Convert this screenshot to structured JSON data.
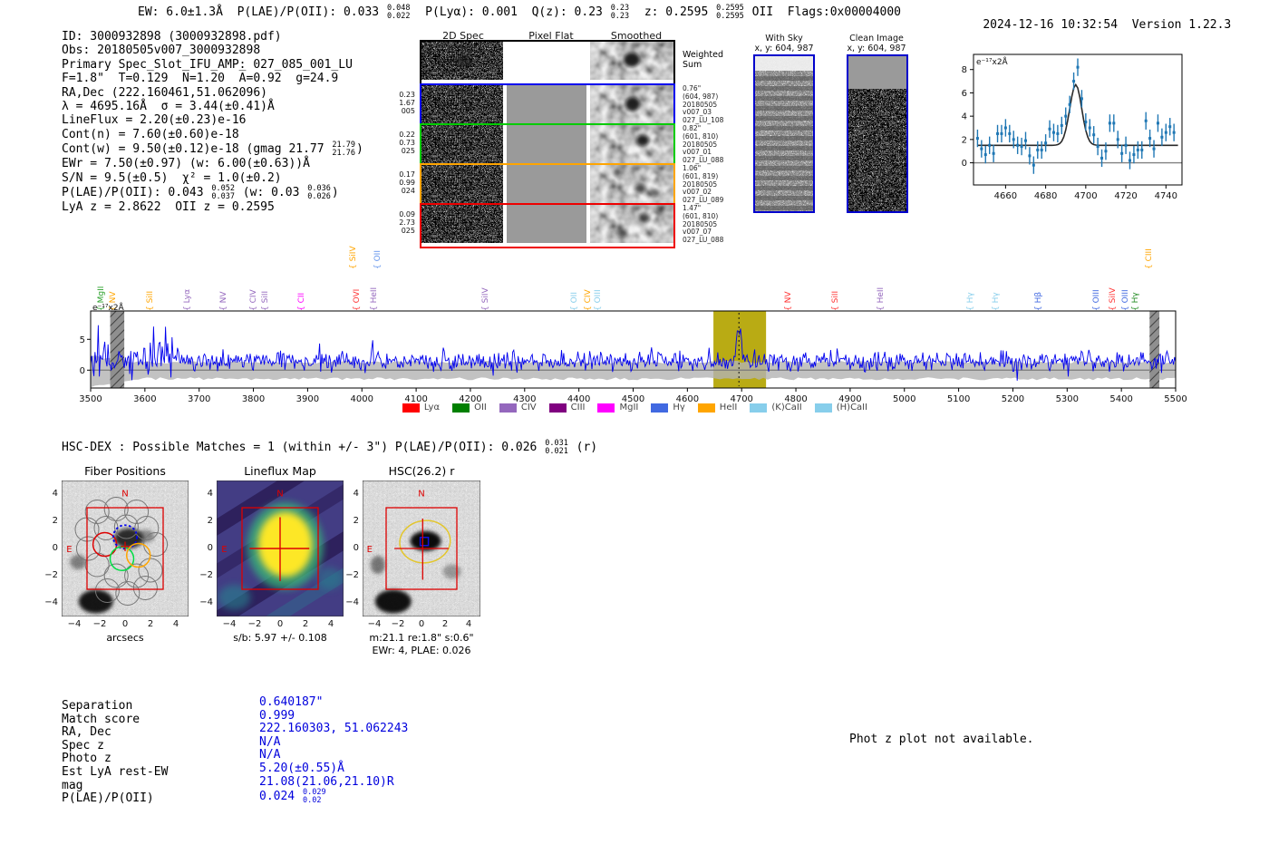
{
  "report": {
    "header": {
      "segments": [
        {
          "t": "EW: 6.0±1.3Å  P(LAE)/P(OII): 0.033 "
        },
        {
          "v": "",
          "sup": "0.048",
          "sub": "0.022"
        },
        {
          "t": "  P(Lyα): 0.001  Q(z): 0.23 "
        },
        {
          "v": "",
          "sup": "0.23",
          "sub": "0.23"
        },
        {
          "t": "  z: 0.2595 "
        },
        {
          "v": "",
          "sup": "0.2595",
          "sub": "0.2595"
        },
        {
          "t": " OII  Flags:0x00004000"
        }
      ],
      "timestamp": "2024-12-16 10:32:54",
      "version": "Version 1.22.3"
    },
    "info_lines": [
      [
        {
          "t": "ID: 3000932898 (3000932898.pdf)"
        }
      ],
      [
        {
          "t": "Obs: 20180505v007_3000932898"
        }
      ],
      [
        {
          "t": "Primary Spec_Slot_IFU_AMP: 027_085_001_LU"
        }
      ],
      [
        {
          "t": "F=1.8\"  T=0.129  N̅=1.20  A̅=0.92  g=24.9"
        }
      ],
      [
        {
          "t": "RA,Dec (222.160461,51.062096)"
        }
      ],
      [
        {
          "t": "λ = 4695.16Å  σ = 3.44(±0.41)Å"
        }
      ],
      [
        {
          "t": "LineFlux = 2.20(±0.23)e-16"
        }
      ],
      [
        {
          "t": "Cont(n) = 7.60(±0.60)e-18"
        }
      ],
      [
        {
          "t": "Cont(w) = 9.50(±0.12)e-18 (gmag 21.77 "
        },
        {
          "v": "",
          "sup": "21.79",
          "sub": "21.76"
        },
        {
          "t": ")"
        }
      ],
      [
        {
          "t": "EWr = 7.50(±0.97) (w: 6.00(±0.63))Å"
        }
      ],
      [
        {
          "t": "S/N = 9.5(±0.5)  χ² = 1.0(±0.2)"
        }
      ],
      [
        {
          "t": "P(LAE)/P(OII): 0.043 "
        },
        {
          "v": "",
          "sup": "0.052",
          "sub": "0.037"
        },
        {
          "t": " (w: 0.03 "
        },
        {
          "v": "",
          "sup": "0.036",
          "sub": "0.026"
        },
        {
          "t": ")"
        }
      ],
      [
        {
          "t": "LyA z = 2.8622  OII z = 0.2595"
        }
      ]
    ],
    "cutout2d": {
      "col_headers": [
        "2D Spec",
        "Pixel Flat",
        "Smoothed"
      ],
      "rows": [
        {
          "border": "#000000",
          "left": [],
          "right": [
            "Weighted",
            "Sum"
          ],
          "right_big": true
        },
        {
          "border": "#0000ee",
          "left": [
            "0.23",
            "1.67",
            "005"
          ],
          "right": [
            "0.76\"",
            "(604, 987)",
            "20180505",
            "v007_03",
            "027_LU_108"
          ]
        },
        {
          "border": "#00cc00",
          "left": [
            "0.22",
            "0.73",
            "025"
          ],
          "right": [
            "0.82\"",
            "(601, 810)",
            "20180505",
            "v007_01",
            "027_LU_088"
          ]
        },
        {
          "border": "#ffa500",
          "left": [
            "0.17",
            "0.99",
            "024"
          ],
          "right": [
            "1.06\"",
            "(601, 819)",
            "20180505",
            "v007_02",
            "027_LU_089"
          ]
        },
        {
          "border": "#ee0000",
          "left": [
            "0.09",
            "2.73",
            "025"
          ],
          "right": [
            "1.47\"",
            "(601, 810)",
            "20180505",
            "v007_07",
            "027_LU_088"
          ]
        }
      ]
    },
    "sky_panels": {
      "with_sky_title": "With Sky",
      "with_sky_sub": "x, y: 604, 987",
      "clean_title": "Clean Image",
      "clean_sub": "x, y: 604, 987"
    },
    "hscdex_line": [
      {
        "t": "HSC-DEX : Possible Matches = 1 (within +/- 3\")  P(LAE)/P(OII): 0.026 "
      },
      {
        "v": "",
        "sup": "0.031",
        "sub": "0.021"
      },
      {
        "t": " (r)"
      }
    ],
    "cutouts": {
      "fiber": {
        "title": "Fiber Positions",
        "xlabel": "arcsecs",
        "north": "N",
        "east": "E",
        "xticks": [
          -4,
          -2,
          0,
          2,
          4
        ],
        "yticks": [
          4,
          2,
          0,
          -2,
          -4
        ]
      },
      "lineflux": {
        "title": "Lineflux Map",
        "caption": "s/b: 5.97 +/- 0.108",
        "north": "N",
        "east": "E",
        "xticks": [
          -4,
          -2,
          0,
          2,
          4
        ],
        "yticks": [
          4,
          2,
          0,
          -2,
          -4
        ]
      },
      "hsc": {
        "title": "HSC(26.2) r",
        "caption1": "m:21.1  re:1.8\"  s:0.6\"",
        "caption2": "EWr: 4, PLAE: 0.026",
        "north": "N",
        "east": "E",
        "xticks": [
          -4,
          -2,
          0,
          2,
          4
        ],
        "yticks": [
          4,
          2,
          0,
          -2,
          -4
        ]
      }
    },
    "match_table": {
      "rows": [
        {
          "label": "Separation",
          "value": [
            {
              "t": "0.640187\""
            }
          ]
        },
        {
          "label": "Match score",
          "value": [
            {
              "t": "0.999"
            }
          ]
        },
        {
          "label": "RA, Dec",
          "value": [
            {
              "t": "222.160303, 51.062243"
            }
          ]
        },
        {
          "label": "Spec z",
          "value": [
            {
              "t": "N/A"
            }
          ]
        },
        {
          "label": "Photo z",
          "value": [
            {
              "t": "N/A"
            }
          ]
        },
        {
          "label": "Est LyA rest-EW",
          "value": [
            {
              "t": "5.20(±0.55)Å"
            }
          ]
        },
        {
          "label": "mag",
          "value": [
            {
              "t": "21.08(21.06,21.10)R"
            }
          ]
        },
        {
          "label": "P(LAE)/P(OII)",
          "value": [
            {
              "t": "0.024 "
            },
            {
              "v": "",
              "sup": "0.029",
              "sub": "0.02"
            }
          ]
        }
      ]
    },
    "note": "Phot z plot not available."
  },
  "chart_data": [
    {
      "id": "inset_line_fit",
      "type": "scatter",
      "corner_label": "e⁻¹⁷x2Å",
      "x": [
        4646,
        4648,
        4650,
        4652,
        4654,
        4656,
        4658,
        4660,
        4662,
        4664,
        4666,
        4668,
        4670,
        4672,
        4674,
        4676,
        4678,
        4680,
        4682,
        4684,
        4686,
        4688,
        4690,
        4692,
        4694,
        4696,
        4698,
        4700,
        4702,
        4704,
        4706,
        4708,
        4710,
        4712,
        4714,
        4716,
        4718,
        4720,
        4722,
        4724,
        4726,
        4728,
        4730,
        4732,
        4734,
        4736,
        4738,
        4740,
        4742,
        4744
      ],
      "y": [
        2.1,
        1.2,
        0.7,
        1.5,
        0.8,
        2.5,
        2.5,
        3.0,
        2.5,
        2.0,
        1.5,
        1.4,
        1.9,
        0.6,
        -0.2,
        1.1,
        1.1,
        1.7,
        2.9,
        2.6,
        2.5,
        3.2,
        4.0,
        5.0,
        7.0,
        8.2,
        5.5,
        3.5,
        3.0,
        2.4,
        1.4,
        0.4,
        1.0,
        3.4,
        3.4,
        2.0,
        0.8,
        1.5,
        0.2,
        0.7,
        1.1,
        1.1,
        3.6,
        2.1,
        1.2,
        3.4,
        2.2,
        2.6,
        3.1,
        2.6
      ],
      "yerr": 0.75,
      "fit": {
        "baseline": 1.5,
        "amplitude": 5.2,
        "center": 4695,
        "sigma": 3.0
      },
      "xticks": [
        4660,
        4680,
        4700,
        4720,
        4740
      ],
      "yticks": [
        0,
        2,
        4,
        6,
        8
      ],
      "xlim": [
        4644,
        4748
      ],
      "ylim": [
        -1.9,
        9.3
      ],
      "point_color": "#1f77b4",
      "fit_color": "#2a2a2a"
    },
    {
      "id": "main_spectrum",
      "type": "line",
      "corner_label": "e⁻¹⁷x2Å",
      "xlim": [
        3500,
        5500
      ],
      "ylim": [
        -2.9,
        9.6
      ],
      "xticks": [
        3500,
        3600,
        3700,
        3800,
        3900,
        4000,
        4100,
        4200,
        4300,
        4400,
        4500,
        4600,
        4700,
        4800,
        4900,
        5000,
        5100,
        5200,
        5300,
        5400,
        5500
      ],
      "yticks": [
        0,
        5
      ],
      "baseline": 1.4,
      "noise_amp": 1.5,
      "seed": 42,
      "peak": {
        "center": 4695,
        "amplitude": 6.6,
        "sigma": 3.5
      },
      "highlight": [
        4648,
        4745
      ],
      "masked_regions": [
        [
          3536,
          3562
        ],
        [
          5452,
          5470
        ]
      ],
      "dotted_line": 4695,
      "error_band": 1.4,
      "line_color": "#0000ee",
      "highlight_color": "#b3a400",
      "legend": [
        {
          "label": "Lyα",
          "color": "#ff0000"
        },
        {
          "label": "OII",
          "color": "#008000"
        },
        {
          "label": "CIV",
          "color": "#9467bd"
        },
        {
          "label": "CIII",
          "color": "#800080"
        },
        {
          "label": "MgII",
          "color": "#ff00ff"
        },
        {
          "label": "Hγ",
          "color": "#4169e1"
        },
        {
          "label": "HeII",
          "color": "#ffa500"
        },
        {
          "label": "(K)CaII",
          "color": "#87ceeb"
        },
        {
          "label": "(H)CaII",
          "color": "#87ceeb"
        }
      ],
      "line_labels": [
        {
          "text": "MgII",
          "x": 3530,
          "color": "#2ca02c",
          "tier": 0
        },
        {
          "text": "NV",
          "x": 3551,
          "color": "#ffa500",
          "tier": 0
        },
        {
          "text": "SiII",
          "x": 3621,
          "color": "#ffa500",
          "tier": 0
        },
        {
          "text": "Lyα",
          "x": 3688,
          "color": "#9467bd",
          "tier": 0
        },
        {
          "text": "NV",
          "x": 3755,
          "color": "#9467bd",
          "tier": 0
        },
        {
          "text": "CIV",
          "x": 3811,
          "color": "#9467bd",
          "tier": 0
        },
        {
          "text": "SiII",
          "x": 3833,
          "color": "#9467bd",
          "tier": 0
        },
        {
          "text": "CII",
          "x": 3900,
          "color": "#ff00ff",
          "tier": 0
        },
        {
          "text": "SiIV",
          "x": 3994,
          "color": "#ffa500",
          "tier": 1
        },
        {
          "text": "OVI",
          "x": 4002,
          "color": "#ff3333",
          "tier": 0
        },
        {
          "text": "HeII",
          "x": 4033,
          "color": "#9467bd",
          "tier": 0
        },
        {
          "text": "OII",
          "x": 4040,
          "color": "#6495ed",
          "tier": 1
        },
        {
          "text": "SiIV",
          "x": 4239,
          "color": "#9467bd",
          "tier": 0
        },
        {
          "text": "OII",
          "x": 4402,
          "color": "#87ceeb",
          "tier": 0
        },
        {
          "text": "CIV",
          "x": 4428,
          "color": "#ffa500",
          "tier": 0
        },
        {
          "text": "OIII",
          "x": 4446,
          "color": "#87ceeb",
          "tier": 0
        },
        {
          "text": "NV",
          "x": 4797,
          "color": "#ff3333",
          "tier": 0
        },
        {
          "text": "SiII",
          "x": 4883,
          "color": "#ff3333",
          "tier": 0
        },
        {
          "text": "HeII",
          "x": 4967,
          "color": "#9467bd",
          "tier": 0
        },
        {
          "text": "Hγ",
          "x": 5133,
          "color": "#87ceeb",
          "tier": 0
        },
        {
          "text": "Hγ",
          "x": 5180,
          "color": "#87ceeb",
          "tier": 0
        },
        {
          "text": "Hβ",
          "x": 5258,
          "color": "#4169e1",
          "tier": 0
        },
        {
          "text": "OIII",
          "x": 5364,
          "color": "#4169e1",
          "tier": 0
        },
        {
          "text": "SiIV",
          "x": 5395,
          "color": "#ff3333",
          "tier": 0
        },
        {
          "text": "OIII",
          "x": 5418,
          "color": "#4169e1",
          "tier": 0
        },
        {
          "text": "Hγ",
          "x": 5437,
          "color": "#228B22",
          "tier": 0
        },
        {
          "text": "CIII",
          "x": 5461,
          "color": "#ffa500",
          "tier": 1
        }
      ]
    }
  ]
}
